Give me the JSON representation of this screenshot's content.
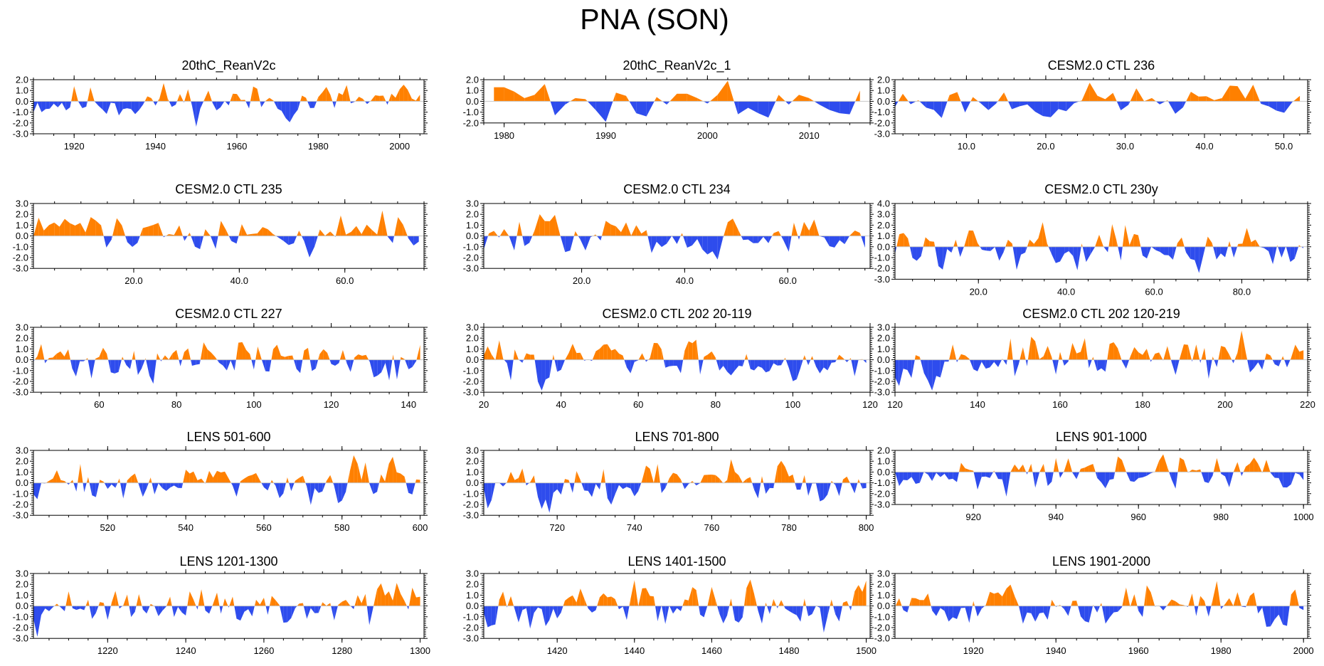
{
  "colors": {
    "positive": "#ff8000",
    "negative": "#2e4ced",
    "frame": "#000000",
    "zero_line": "#c8c8c8"
  },
  "chart_data": {
    "type": "area",
    "title": "PNA (SON)",
    "panels": [
      {
        "title": "20thC_ReanV2c",
        "xlim": [
          1910,
          2006
        ],
        "ylim": [
          -3,
          2
        ],
        "yticks": [
          "2.0",
          "1.0",
          "0.0",
          "-1.0",
          "-2.0",
          "-3.0"
        ],
        "xticks": [
          1920,
          1940,
          1960,
          1980,
          2000
        ],
        "xticklabels": [
          "1920",
          "1940",
          "1960",
          "1980",
          "2000"
        ],
        "n": 96,
        "seed": 11,
        "amp": 1.0
      },
      {
        "title": "20thC_ReanV2c_1",
        "xlim": [
          1978,
          2016
        ],
        "ylim": [
          -2,
          2
        ],
        "yticks": [
          "2.0",
          "1.0",
          "0.0",
          "-1.0",
          "-2.0"
        ],
        "xticks": [
          1980,
          1990,
          2000,
          2010
        ],
        "xticklabels": [
          "1980",
          "1990",
          "2000",
          "2010"
        ],
        "x": [
          1979,
          1980,
          1981,
          1982,
          1983,
          1984,
          1985,
          1986,
          1987,
          1988,
          1989,
          1990,
          1991,
          1992,
          1993,
          1994,
          1995,
          1996,
          1997,
          1998,
          1999,
          2000,
          2001,
          2002,
          2003,
          2004,
          2005,
          2006,
          2007,
          2008,
          2009,
          2010,
          2011,
          2012,
          2013,
          2014,
          2015
        ],
        "values": [
          1.3,
          1.3,
          0.9,
          0.3,
          0.6,
          1.6,
          -1.3,
          -0.3,
          0.3,
          0.2,
          -0.8,
          -1.9,
          0.8,
          0.5,
          -1.1,
          -1.4,
          0.4,
          -0.3,
          0.7,
          0.7,
          0.3,
          -0.2,
          0.6,
          1.9,
          -1.2,
          -0.6,
          -1.1,
          -1.5,
          0.6,
          -0.3,
          0.6,
          0.3,
          -0.3,
          -0.8,
          -1.1,
          -1.2,
          1.0
        ]
      },
      {
        "title": "CESM2.0 CTL 236",
        "xlim": [
          1,
          53
        ],
        "ylim": [
          -3,
          2
        ],
        "yticks": [
          "2.0",
          "1.0",
          "0.0",
          "-1.0",
          "-2.0",
          "-3.0"
        ],
        "xticks": [
          10,
          20,
          30,
          40,
          50
        ],
        "xticklabels": [
          "10.0",
          "20.0",
          "30.0",
          "40.0",
          "50.0"
        ],
        "n": 53,
        "seed": 23,
        "amp": 1.0
      },
      {
        "title": "CESM2.0 CTL 235",
        "xlim": [
          1,
          75
        ],
        "ylim": [
          -3,
          3
        ],
        "yticks": [
          "3.0",
          "2.0",
          "1.0",
          "0.0",
          "-1.0",
          "-2.0",
          "-3.0"
        ],
        "xticks": [
          20,
          40,
          60
        ],
        "xticklabels": [
          "20.0",
          "40.0",
          "60.0"
        ],
        "n": 75,
        "seed": 35,
        "amp": 1.1
      },
      {
        "title": "CESM2.0 CTL 234",
        "xlim": [
          1,
          76
        ],
        "ylim": [
          -3,
          3
        ],
        "yticks": [
          "3.0",
          "2.0",
          "1.0",
          "0.0",
          "-1.0",
          "-2.0",
          "-3.0"
        ],
        "xticks": [
          20,
          40,
          60
        ],
        "xticklabels": [
          "20.0",
          "40.0",
          "60.0"
        ],
        "n": 76,
        "seed": 47,
        "amp": 1.1
      },
      {
        "title": "CESM2.0 CTL 230y",
        "xlim": [
          1,
          95
        ],
        "ylim": [
          -3,
          4
        ],
        "yticks": [
          "4.0",
          "3.0",
          "2.0",
          "1.0",
          "0.0",
          "-1.0",
          "-2.0",
          "-3.0"
        ],
        "xticks": [
          20,
          40,
          60,
          80
        ],
        "xticklabels": [
          "20.0",
          "40.0",
          "60.0",
          "80.0"
        ],
        "n": 95,
        "seed": 59,
        "amp": 1.1
      },
      {
        "title": "CESM2.0 CTL 227",
        "xlim": [
          43,
          144
        ],
        "ylim": [
          -3,
          3
        ],
        "yticks": [
          "3.0",
          "2.0",
          "1.0",
          "0.0",
          "-1.0",
          "-2.0",
          "-3.0"
        ],
        "xticks": [
          60,
          80,
          100,
          120,
          140
        ],
        "xticklabels": [
          "60",
          "80",
          "100",
          "120",
          "140"
        ],
        "n": 101,
        "seed": 71,
        "amp": 1.1
      },
      {
        "title": "CESM2.0 CTL 202 20-119",
        "xlim": [
          20,
          120
        ],
        "ylim": [
          -3,
          3
        ],
        "yticks": [
          "3.0",
          "2.0",
          "1.0",
          "0.0",
          "-1.0",
          "-2.0",
          "-3.0"
        ],
        "xticks": [
          20,
          40,
          60,
          80,
          100,
          120
        ],
        "xticklabels": [
          "20",
          "40",
          "60",
          "80",
          "100",
          "120"
        ],
        "n": 100,
        "seed": 83,
        "amp": 1.1
      },
      {
        "title": "CESM2.0 CTL 202 120-219",
        "xlim": [
          120,
          220
        ],
        "ylim": [
          -3,
          3
        ],
        "yticks": [
          "3.0",
          "2.0",
          "1.0",
          "0.0",
          "-1.0",
          "-2.0",
          "-3.0"
        ],
        "xticks": [
          120,
          140,
          160,
          180,
          200,
          220
        ],
        "xticklabels": [
          "120",
          "140",
          "160",
          "180",
          "200",
          "220"
        ],
        "n": 100,
        "seed": 97,
        "amp": 1.1
      },
      {
        "title": "LENS 501-600",
        "xlim": [
          501,
          601
        ],
        "ylim": [
          -3,
          3
        ],
        "yticks": [
          "3.0",
          "2.0",
          "1.0",
          "0.0",
          "-1.0",
          "-2.0",
          "-3.0"
        ],
        "xticks": [
          520,
          540,
          560,
          580,
          600
        ],
        "xticklabels": [
          "520",
          "540",
          "560",
          "580",
          "600"
        ],
        "n": 100,
        "seed": 109,
        "amp": 1.1
      },
      {
        "title": "LENS 701-800",
        "xlim": [
          701,
          801
        ],
        "ylim": [
          -3,
          3
        ],
        "yticks": [
          "3.0",
          "2.0",
          "1.0",
          "0.0",
          "-1.0",
          "-2.0",
          "-3.0"
        ],
        "xticks": [
          720,
          740,
          760,
          780,
          800
        ],
        "xticklabels": [
          "720",
          "740",
          "760",
          "780",
          "800"
        ],
        "n": 100,
        "seed": 121,
        "amp": 1.1
      },
      {
        "title": "LENS 901-1000",
        "xlim": [
          901,
          1001
        ],
        "ylim": [
          -3,
          2
        ],
        "yticks": [
          "2.0",
          "1.0",
          "0.0",
          "-1.0",
          "-2.0",
          "-3.0"
        ],
        "xticks": [
          920,
          940,
          960,
          980,
          1000
        ],
        "xticklabels": [
          "920",
          "940",
          "960",
          "980",
          "1000"
        ],
        "n": 100,
        "seed": 133,
        "amp": 1.0
      },
      {
        "title": "LENS 1201-1300",
        "xlim": [
          1201,
          1301
        ],
        "ylim": [
          -3,
          3
        ],
        "yticks": [
          "3.0",
          "2.0",
          "1.0",
          "0.0",
          "-1.0",
          "-2.0",
          "-3.0"
        ],
        "xticks": [
          1220,
          1240,
          1260,
          1280,
          1300
        ],
        "xticklabels": [
          "1220",
          "1240",
          "1260",
          "1280",
          "1300"
        ],
        "n": 100,
        "seed": 145,
        "amp": 1.1
      },
      {
        "title": "LENS 1401-1500",
        "xlim": [
          1401,
          1501
        ],
        "ylim": [
          -3,
          3
        ],
        "yticks": [
          "3.0",
          "2.0",
          "1.0",
          "0.0",
          "-1.0",
          "-2.0",
          "-3.0"
        ],
        "xticks": [
          1420,
          1440,
          1460,
          1480,
          1500
        ],
        "xticklabels": [
          "1420",
          "1440",
          "1460",
          "1480",
          "1500"
        ],
        "n": 100,
        "seed": 157,
        "amp": 1.1
      },
      {
        "title": "LENS 1901-2000",
        "xlim": [
          1901,
          2001
        ],
        "ylim": [
          -3,
          3
        ],
        "yticks": [
          "3.0",
          "2.0",
          "1.0",
          "0.0",
          "-1.0",
          "-2.0",
          "-3.0"
        ],
        "xticks": [
          1920,
          1940,
          1960,
          1980,
          2000
        ],
        "xticklabels": [
          "1920",
          "1940",
          "1960",
          "1980",
          "2000"
        ],
        "n": 100,
        "seed": 169,
        "amp": 1.1
      }
    ]
  }
}
